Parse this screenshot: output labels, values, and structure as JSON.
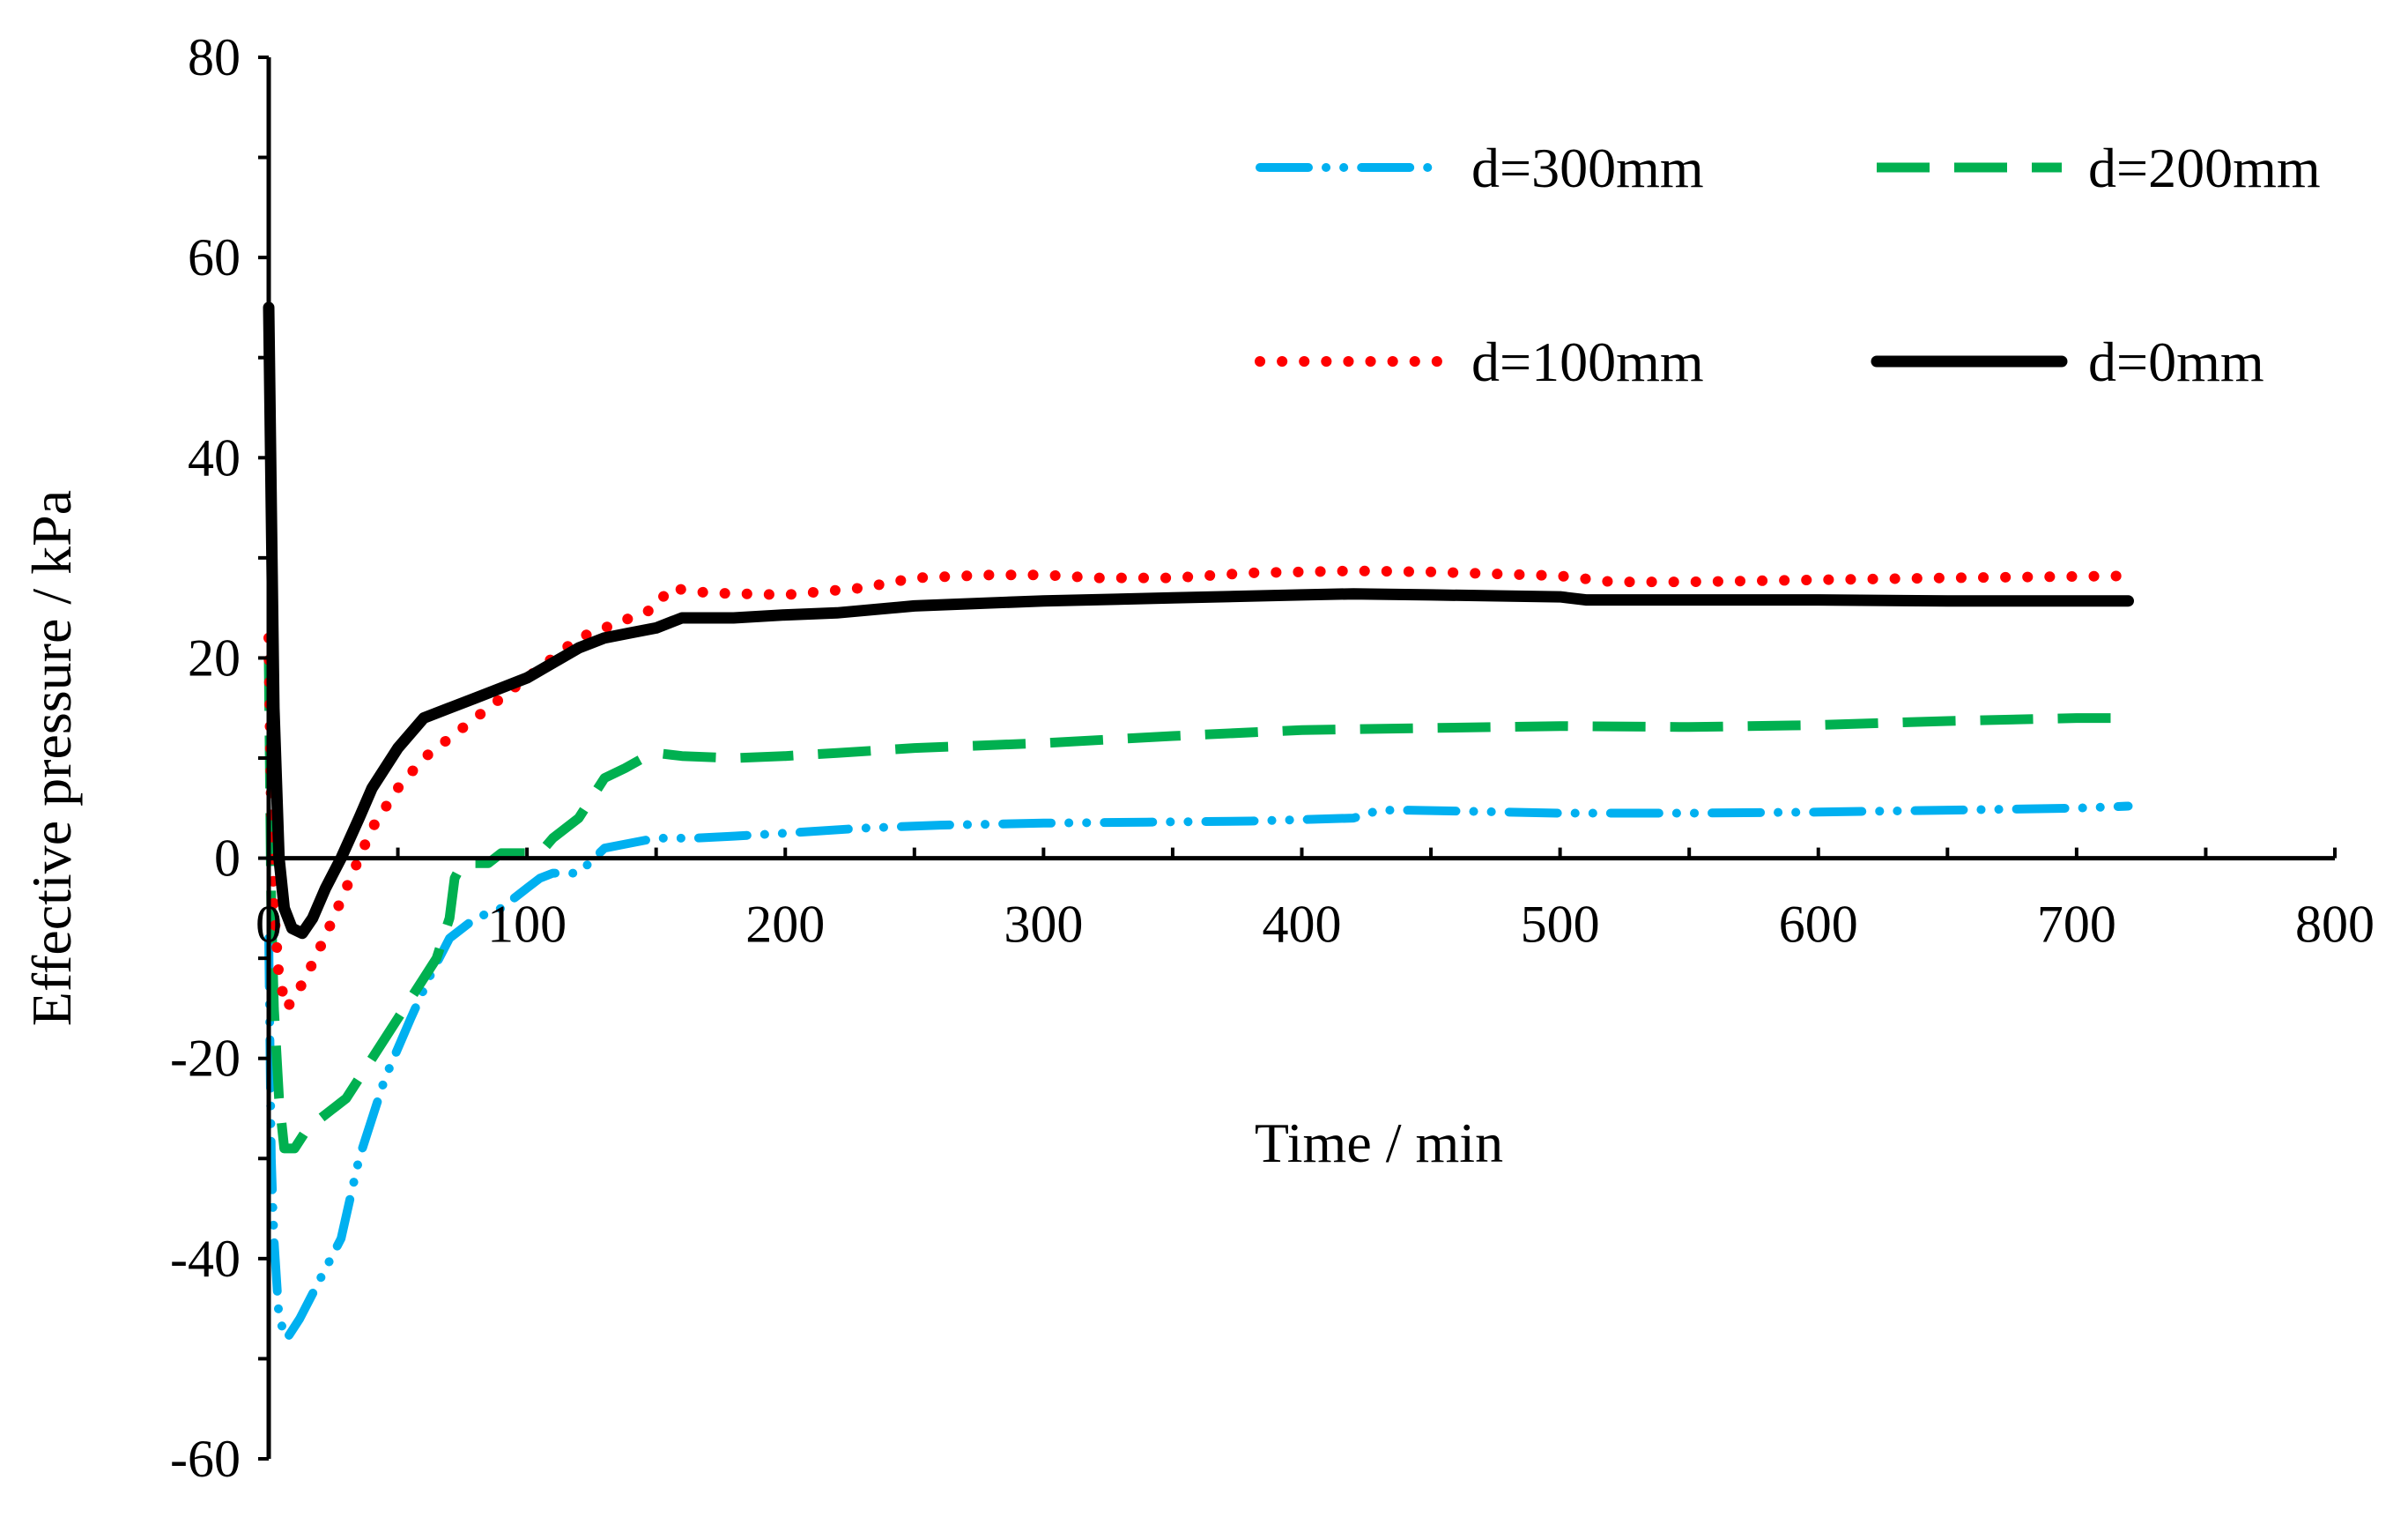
{
  "chart_data": {
    "type": "line",
    "title": "",
    "xlabel": "Time  / min",
    "ylabel": "Effective pressure  / kPa",
    "xlim": [
      0,
      800
    ],
    "ylim": [
      -60,
      80
    ],
    "x_ticks": [
      0,
      100,
      200,
      300,
      400,
      500,
      600,
      700,
      800
    ],
    "x_tick_labels": [
      "0",
      "100",
      "200",
      "300",
      "400",
      "500",
      "600",
      "700",
      "800"
    ],
    "y_ticks": [
      80,
      60,
      40,
      20,
      0,
      -20,
      -40,
      -60
    ],
    "y_tick_labels": [
      "80",
      "60",
      "40",
      "20",
      "0",
      "-20",
      "-40",
      "-60"
    ],
    "grid": false,
    "legend_position": "top-right",
    "series": [
      {
        "name": "d=300mm",
        "color": "#00b0f0",
        "style": "dash-dot-dot",
        "points": [
          [
            0,
            -8
          ],
          [
            1,
            -30
          ],
          [
            2,
            -38
          ],
          [
            4,
            -46
          ],
          [
            7,
            -48
          ],
          [
            12,
            -46
          ],
          [
            20,
            -42
          ],
          [
            28,
            -38
          ],
          [
            35,
            -30
          ],
          [
            45,
            -22
          ],
          [
            55,
            -16
          ],
          [
            62,
            -12
          ],
          [
            70,
            -8
          ],
          [
            80,
            -6
          ],
          [
            90,
            -5
          ],
          [
            100,
            -3
          ],
          [
            105,
            -2
          ],
          [
            110,
            -1.5
          ],
          [
            115,
            -1.5
          ],
          [
            120,
            -1.5
          ],
          [
            130,
            1
          ],
          [
            140,
            1.5
          ],
          [
            150,
            2
          ],
          [
            165,
            2
          ],
          [
            180,
            2.2
          ],
          [
            200,
            2.5
          ],
          [
            230,
            3
          ],
          [
            260,
            3.3
          ],
          [
            300,
            3.5
          ],
          [
            340,
            3.6
          ],
          [
            380,
            3.7
          ],
          [
            420,
            4
          ],
          [
            430,
            4.8
          ],
          [
            440,
            4.8
          ],
          [
            480,
            4.6
          ],
          [
            500,
            4.5
          ],
          [
            550,
            4.5
          ],
          [
            600,
            4.6
          ],
          [
            650,
            4.8
          ],
          [
            700,
            5.0
          ],
          [
            720,
            5.2
          ]
        ]
      },
      {
        "name": "d=200mm",
        "color": "#00b050",
        "style": "dash",
        "points": [
          [
            0,
            20
          ],
          [
            1,
            -5
          ],
          [
            2,
            -15
          ],
          [
            4,
            -24
          ],
          [
            6,
            -29
          ],
          [
            10,
            -29
          ],
          [
            15,
            -27
          ],
          [
            20,
            -26
          ],
          [
            30,
            -24
          ],
          [
            40,
            -20
          ],
          [
            50,
            -16
          ],
          [
            55,
            -14
          ],
          [
            60,
            -12
          ],
          [
            65,
            -10
          ],
          [
            70,
            -6
          ],
          [
            72,
            -2
          ],
          [
            75,
            -0.5
          ],
          [
            80,
            -0.5
          ],
          [
            85,
            -0.5
          ],
          [
            90,
            0.5
          ],
          [
            100,
            0.5
          ],
          [
            105,
            0.5
          ],
          [
            110,
            2
          ],
          [
            120,
            4
          ],
          [
            130,
            8
          ],
          [
            138,
            9
          ],
          [
            145,
            10
          ],
          [
            150,
            10.5
          ],
          [
            160,
            10.2
          ],
          [
            180,
            10
          ],
          [
            200,
            10.2
          ],
          [
            220,
            10.5
          ],
          [
            250,
            11
          ],
          [
            300,
            11.5
          ],
          [
            350,
            12.2
          ],
          [
            400,
            12.8
          ],
          [
            450,
            13
          ],
          [
            500,
            13.2
          ],
          [
            550,
            13.1
          ],
          [
            600,
            13.3
          ],
          [
            650,
            13.7
          ],
          [
            700,
            14
          ],
          [
            720,
            14
          ]
        ]
      },
      {
        "name": "d=100mm",
        "color": "#ff0000",
        "style": "dot",
        "points": [
          [
            0,
            22
          ],
          [
            1,
            5
          ],
          [
            2,
            -5
          ],
          [
            4,
            -12
          ],
          [
            7,
            -15
          ],
          [
            12,
            -13
          ],
          [
            18,
            -10
          ],
          [
            25,
            -6
          ],
          [
            30,
            -3
          ],
          [
            35,
            0
          ],
          [
            40,
            3
          ],
          [
            50,
            7
          ],
          [
            60,
            10
          ],
          [
            70,
            12
          ],
          [
            80,
            14
          ],
          [
            90,
            16
          ],
          [
            100,
            18
          ],
          [
            110,
            20
          ],
          [
            120,
            22
          ],
          [
            130,
            23
          ],
          [
            140,
            24
          ],
          [
            150,
            25
          ],
          [
            155,
            27
          ],
          [
            170,
            26.5
          ],
          [
            200,
            26.3
          ],
          [
            230,
            27
          ],
          [
            250,
            28
          ],
          [
            280,
            28.3
          ],
          [
            300,
            28.3
          ],
          [
            320,
            28
          ],
          [
            350,
            28
          ],
          [
            380,
            28.5
          ],
          [
            400,
            28.6
          ],
          [
            420,
            28.7
          ],
          [
            450,
            28.6
          ],
          [
            500,
            28.2
          ],
          [
            520,
            27.6
          ],
          [
            550,
            27.6
          ],
          [
            600,
            27.8
          ],
          [
            650,
            28
          ],
          [
            720,
            28.2
          ]
        ]
      },
      {
        "name": "d=0mm",
        "color": "#000000",
        "style": "solid",
        "points": [
          [
            0,
            55
          ],
          [
            1,
            35
          ],
          [
            2,
            15
          ],
          [
            4,
            0
          ],
          [
            6,
            -5
          ],
          [
            9,
            -7
          ],
          [
            13,
            -7.5
          ],
          [
            17,
            -6
          ],
          [
            22,
            -3
          ],
          [
            28,
            0
          ],
          [
            35,
            4
          ],
          [
            40,
            7
          ],
          [
            50,
            11
          ],
          [
            60,
            14
          ],
          [
            70,
            15
          ],
          [
            80,
            16
          ],
          [
            90,
            17
          ],
          [
            100,
            18
          ],
          [
            110,
            19.5
          ],
          [
            120,
            21
          ],
          [
            130,
            22
          ],
          [
            140,
            22.5
          ],
          [
            150,
            23
          ],
          [
            160,
            24
          ],
          [
            180,
            24
          ],
          [
            200,
            24.3
          ],
          [
            220,
            24.5
          ],
          [
            250,
            25.2
          ],
          [
            300,
            25.7
          ],
          [
            350,
            26
          ],
          [
            400,
            26.3
          ],
          [
            420,
            26.4
          ],
          [
            450,
            26.3
          ],
          [
            500,
            26.1
          ],
          [
            510,
            25.8
          ],
          [
            550,
            25.8
          ],
          [
            600,
            25.8
          ],
          [
            650,
            25.7
          ],
          [
            700,
            25.7
          ],
          [
            720,
            25.7
          ]
        ]
      }
    ]
  }
}
